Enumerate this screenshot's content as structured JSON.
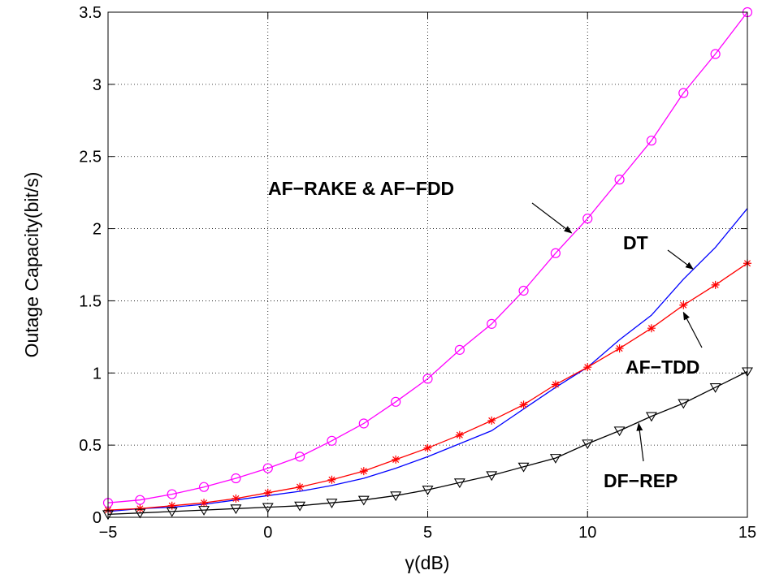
{
  "chart_data": {
    "type": "line",
    "xlabel": "γ(dB)",
    "ylabel": "Outage Capacity(bit/s)",
    "xlim": [
      -5,
      15
    ],
    "ylim": [
      0,
      3.5
    ],
    "xticks": [
      "−5",
      "0",
      "5",
      "10",
      "15"
    ],
    "yticks": [
      "0",
      "0.5",
      "1",
      "1.5",
      "2",
      "2.5",
      "3",
      "3.5"
    ],
    "grid": true,
    "series": [
      {
        "name": "AF−RAKE & AF−FDD",
        "color": "#ff00ff",
        "marker": "circle",
        "x": [
          -5,
          -4,
          -3,
          -2,
          -1,
          0,
          1,
          2,
          3,
          4,
          5,
          6,
          7,
          8,
          9,
          10,
          11,
          12,
          13,
          14,
          15
        ],
        "values": [
          0.1,
          0.12,
          0.16,
          0.21,
          0.27,
          0.34,
          0.42,
          0.53,
          0.65,
          0.8,
          0.96,
          1.16,
          1.34,
          1.57,
          1.83,
          2.07,
          2.34,
          2.61,
          2.94,
          3.21,
          3.5
        ]
      },
      {
        "name": "DT",
        "color": "#0000ff",
        "marker": "none",
        "x": [
          -5,
          -4,
          -3,
          -2,
          -1,
          0,
          1,
          2,
          3,
          4,
          5,
          6,
          7,
          8,
          9,
          10,
          11,
          12,
          13,
          14,
          15
        ],
        "values": [
          0.04,
          0.06,
          0.07,
          0.09,
          0.12,
          0.15,
          0.18,
          0.22,
          0.27,
          0.34,
          0.42,
          0.51,
          0.6,
          0.75,
          0.9,
          1.04,
          1.23,
          1.4,
          1.65,
          1.87,
          2.14
        ]
      },
      {
        "name": "AF−TDD",
        "color": "#ff0000",
        "marker": "asterisk",
        "x": [
          -5,
          -4,
          -3,
          -2,
          -1,
          0,
          1,
          2,
          3,
          4,
          5,
          6,
          7,
          8,
          9,
          10,
          11,
          12,
          13,
          14,
          15
        ],
        "values": [
          0.05,
          0.06,
          0.08,
          0.1,
          0.13,
          0.17,
          0.21,
          0.26,
          0.32,
          0.4,
          0.48,
          0.57,
          0.67,
          0.78,
          0.92,
          1.04,
          1.17,
          1.31,
          1.47,
          1.61,
          1.76
        ]
      },
      {
        "name": "DF−REP",
        "color": "#000000",
        "marker": "triangle-down",
        "x": [
          -5,
          -4,
          -3,
          -2,
          -1,
          0,
          1,
          2,
          3,
          4,
          5,
          6,
          7,
          8,
          9,
          10,
          11,
          12,
          13,
          14,
          15
        ],
        "values": [
          0.02,
          0.03,
          0.04,
          0.05,
          0.06,
          0.07,
          0.08,
          0.1,
          0.12,
          0.15,
          0.19,
          0.24,
          0.29,
          0.35,
          0.41,
          0.51,
          0.6,
          0.7,
          0.79,
          0.9,
          1.01
        ]
      }
    ],
    "annotations": [
      {
        "text": "AF−RAKE & AF−FDD",
        "series": "AF−RAKE & AF−FDD",
        "arrow_to_x": 9.5,
        "arrow_to_y": 1.97
      },
      {
        "text": "DT",
        "series": "DT",
        "arrow_to_x": 13.3,
        "arrow_to_y": 1.72
      },
      {
        "text": "AF−TDD",
        "series": "AF−TDD",
        "arrow_to_x": 13.0,
        "arrow_to_y": 1.42
      },
      {
        "text": "DF−REP",
        "series": "DF−REP",
        "arrow_to_x": 11.6,
        "arrow_to_y": 0.65
      }
    ]
  }
}
